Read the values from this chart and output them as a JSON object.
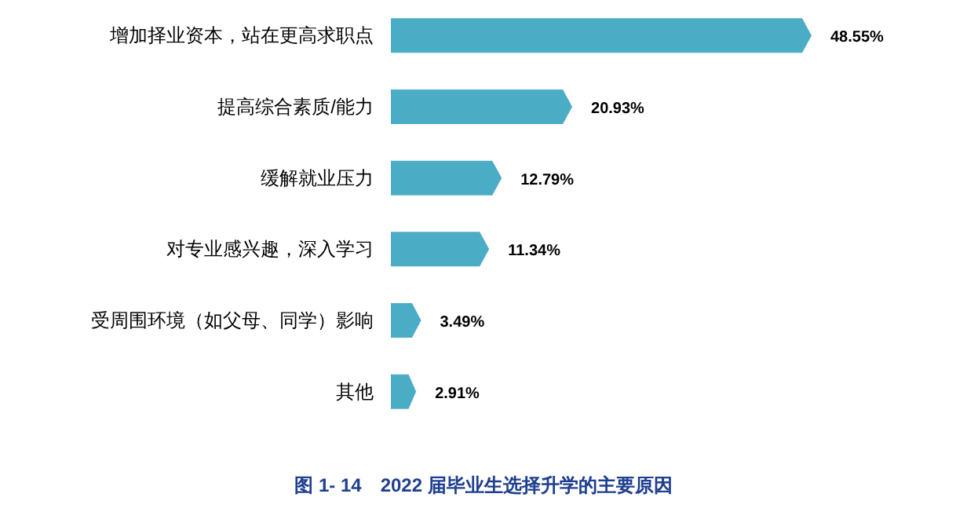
{
  "chart_data": {
    "type": "bar",
    "orientation": "horizontal",
    "title": "图 1- 14　2022 届毕业生选择升学的主要原因",
    "categories": [
      "增加择业资本，站在更高求职点",
      "提高综合素质/能力",
      "缓解就业压力",
      "对专业感兴趣，深入学习",
      "受周围环境（如父母、同学）影响",
      "其他"
    ],
    "values": [
      48.55,
      20.93,
      12.79,
      11.34,
      3.49,
      2.91
    ],
    "value_labels": [
      "48.55%",
      "20.93%",
      "12.79%",
      "11.34%",
      "3.49%",
      "2.91%"
    ],
    "color": "#4bacc6"
  }
}
